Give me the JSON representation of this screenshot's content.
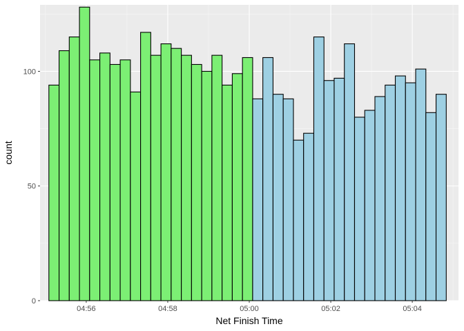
{
  "chart_data": {
    "type": "bar",
    "subtype": "histogram",
    "xlabel": "Net Finish Time",
    "ylabel": "count",
    "y_ticks": [
      0,
      50,
      100
    ],
    "ylim": [
      0,
      129
    ],
    "x_ticks": [
      {
        "value": "04:56",
        "label": "04:56"
      },
      {
        "value": "04:58",
        "label": "04:58"
      },
      {
        "value": "05:00",
        "label": "05:00"
      },
      {
        "value": "05:02",
        "label": "05:02"
      },
      {
        "value": "05:04",
        "label": "05:04"
      }
    ],
    "xlim": [
      "04:54:52",
      "05:05:08"
    ],
    "grid": true,
    "colors": {
      "panel": "#ebebeb",
      "grid_major": "#ffffff",
      "grid_minor": "#f7f7f7",
      "bar_outline": "#000000",
      "group_before_5": "#7CEF74",
      "group_after_5": "#9ED0E3"
    },
    "series": [
      {
        "fill": "#7CEF74",
        "bins": [
          {
            "x0": "04:55:05",
            "x1": "04:55:20",
            "count": 94
          },
          {
            "x0": "04:55:20",
            "x1": "04:55:35",
            "count": 109
          },
          {
            "x0": "04:55:35",
            "x1": "04:55:50",
            "count": 115
          },
          {
            "x0": "04:55:50",
            "x1": "04:56:05",
            "count": 128
          },
          {
            "x0": "04:56:05",
            "x1": "04:56:20",
            "count": 105
          },
          {
            "x0": "04:56:20",
            "x1": "04:56:35",
            "count": 108
          },
          {
            "x0": "04:56:35",
            "x1": "04:56:50",
            "count": 103
          },
          {
            "x0": "04:56:50",
            "x1": "04:57:05",
            "count": 105
          },
          {
            "x0": "04:57:05",
            "x1": "04:57:20",
            "count": 91
          },
          {
            "x0": "04:57:20",
            "x1": "04:57:35",
            "count": 117
          },
          {
            "x0": "04:57:35",
            "x1": "04:57:50",
            "count": 107
          },
          {
            "x0": "04:57:50",
            "x1": "04:58:05",
            "count": 112
          },
          {
            "x0": "04:58:05",
            "x1": "04:58:20",
            "count": 110
          },
          {
            "x0": "04:58:20",
            "x1": "04:58:35",
            "count": 107
          },
          {
            "x0": "04:58:35",
            "x1": "04:58:50",
            "count": 103
          },
          {
            "x0": "04:58:50",
            "x1": "04:59:05",
            "count": 100
          },
          {
            "x0": "04:59:05",
            "x1": "04:59:20",
            "count": 107
          },
          {
            "x0": "04:59:20",
            "x1": "04:59:35",
            "count": 94
          },
          {
            "x0": "04:59:35",
            "x1": "04:59:50",
            "count": 99
          },
          {
            "x0": "04:59:50",
            "x1": "05:00:05",
            "count": 106
          }
        ]
      },
      {
        "fill": "#9ED0E3",
        "bins": [
          {
            "x0": "05:00:05",
            "x1": "05:00:20",
            "count": 88
          },
          {
            "x0": "05:00:20",
            "x1": "05:00:35",
            "count": 106
          },
          {
            "x0": "05:00:35",
            "x1": "05:00:50",
            "count": 90
          },
          {
            "x0": "05:00:50",
            "x1": "05:01:05",
            "count": 88
          },
          {
            "x0": "05:01:05",
            "x1": "05:01:20",
            "count": 70
          },
          {
            "x0": "05:01:20",
            "x1": "05:01:35",
            "count": 73
          },
          {
            "x0": "05:01:35",
            "x1": "05:01:50",
            "count": 115
          },
          {
            "x0": "05:01:50",
            "x1": "05:02:05",
            "count": 96
          },
          {
            "x0": "05:02:05",
            "x1": "05:02:20",
            "count": 97
          },
          {
            "x0": "05:02:20",
            "x1": "05:02:35",
            "count": 112
          },
          {
            "x0": "05:02:35",
            "x1": "05:02:50",
            "count": 80
          },
          {
            "x0": "05:02:50",
            "x1": "05:03:05",
            "count": 83
          },
          {
            "x0": "05:03:05",
            "x1": "05:03:20",
            "count": 89
          },
          {
            "x0": "05:03:20",
            "x1": "05:03:35",
            "count": 94
          },
          {
            "x0": "05:03:35",
            "x1": "05:03:50",
            "count": 98
          },
          {
            "x0": "05:03:50",
            "x1": "05:04:05",
            "count": 95
          },
          {
            "x0": "05:04:05",
            "x1": "05:04:20",
            "count": 101
          },
          {
            "x0": "05:04:20",
            "x1": "05:04:35",
            "count": 82
          },
          {
            "x0": "05:04:35",
            "x1": "05:04:50",
            "count": 90
          }
        ]
      }
    ]
  }
}
